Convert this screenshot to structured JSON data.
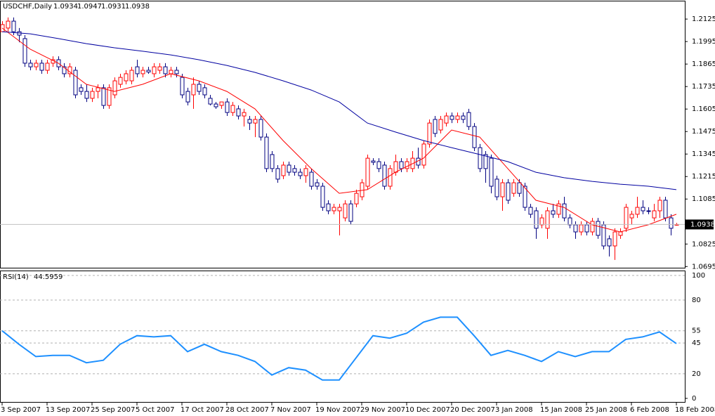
{
  "chart_data": [
    {
      "type": "candlestick",
      "title": "USDCHF,Daily",
      "categories": [
        "3 Sep 2007",
        null,
        null,
        null,
        null,
        null,
        null,
        null,
        "13 Sep 2007",
        null,
        null,
        null,
        null,
        null,
        null,
        null,
        "25 Sep 2007",
        null,
        null,
        null,
        null,
        null,
        null,
        null,
        "5 Oct 2007",
        null,
        null,
        null,
        null,
        null,
        null,
        null,
        "17 Oct 2007",
        null,
        null,
        null,
        null,
        null,
        null,
        null,
        "28 Oct 2007",
        null,
        null,
        null,
        null,
        null,
        null,
        null,
        "7 Nov 2007",
        null,
        null,
        null,
        null,
        null,
        null,
        null,
        "19 Nov 2007",
        null,
        null,
        null,
        null,
        null,
        null,
        null,
        "29 Nov 2007",
        null,
        null,
        null,
        null,
        null,
        null,
        null,
        "10 Dec 2007",
        null,
        null,
        null,
        null,
        null,
        null,
        null,
        "20 Dec 2007",
        null,
        null,
        null,
        null,
        null,
        null,
        null,
        "3 Jan 2008",
        null,
        null,
        null,
        null,
        null,
        null,
        null,
        "15 Jan 2008",
        null,
        null,
        null,
        null,
        null,
        null,
        null,
        "25 Jan 2008",
        null,
        null,
        null,
        null,
        null,
        null,
        null,
        "6 Feb 2008",
        null,
        null,
        null,
        null,
        null,
        null,
        null,
        "18 Feb 2008"
      ],
      "open": [
        1.2052,
        1.2073,
        1.2113,
        1.2052,
        1.2012,
        1.187,
        1.1849,
        1.187,
        1.1829,
        1.187,
        1.189,
        1.1849,
        1.1809,
        1.1829,
        1.1728,
        1.1707,
        1.1667,
        1.1707,
        1.1728,
        1.1626,
        1.1687,
        1.1748,
        1.1768,
        1.1768,
        1.1849,
        1.1809,
        1.1829,
        1.1809,
        1.1829,
        1.1849,
        1.1809,
        1.1829,
        1.1788,
        1.1707,
        1.1687,
        1.1748,
        1.1728,
        1.1667,
        1.1634,
        1.1626,
        1.1646,
        1.1585,
        1.1606,
        1.1565,
        1.1545,
        1.1524,
        1.1545,
        1.1443,
        1.1342,
        1.1261,
        1.122,
        1.1281,
        1.1261,
        1.124,
        1.122,
        1.124,
        1.1179,
        1.1159,
        1.1057,
        1.1017,
        1.1017,
        1.0976,
        1.1057,
        1.1057,
        1.1098,
        1.1159,
        1.1305,
        1.1301,
        1.1281,
        1.1159,
        1.124,
        1.1301,
        1.1261,
        1.1261,
        1.1321,
        1.1281,
        1.1403,
        1.1545,
        1.1484,
        1.1524,
        1.1565,
        1.1545,
        1.1565,
        1.1585,
        1.1504,
        1.1382,
        1.1342,
        1.1321,
        1.12,
        1.1098,
        1.1179,
        1.1118,
        1.1179,
        1.1159,
        1.1037,
        1.1017,
        1.0936,
        1.0916,
        1.1017,
        1.0997,
        1.1057,
        1.0976,
        1.0936,
        1.0895,
        1.0936,
        1.0895,
        1.0956,
        1.0936,
        1.0855,
        1.0814,
        1.0875,
        1.0916,
        1.0976,
        1.0997,
        1.1037,
        1.1017,
        1.0976,
        1.1017,
        1.1078,
        1.0976,
        1.0934
      ],
      "high": [
        1.2113,
        1.2134,
        1.2134,
        1.2073,
        1.2032,
        1.189,
        1.189,
        1.189,
        1.189,
        1.191,
        1.191,
        1.187,
        1.187,
        1.1849,
        1.1748,
        1.1748,
        1.1728,
        1.1748,
        1.1748,
        1.1748,
        1.1788,
        1.1809,
        1.1829,
        1.1849,
        1.189,
        1.1849,
        1.1849,
        1.187,
        1.187,
        1.187,
        1.1849,
        1.1849,
        1.1809,
        1.1728,
        1.1788,
        1.1768,
        1.1748,
        1.1687,
        1.1646,
        1.1646,
        1.1667,
        1.1646,
        1.1626,
        1.1606,
        1.1565,
        1.1565,
        1.1565,
        1.1464,
        1.1362,
        1.1281,
        1.1301,
        1.1301,
        1.1281,
        1.1261,
        1.1281,
        1.1261,
        1.12,
        1.1179,
        1.1078,
        1.1057,
        1.1057,
        1.1078,
        1.1078,
        1.1139,
        1.12,
        1.1342,
        1.1321,
        1.1321,
        1.1301,
        1.1281,
        1.1342,
        1.1321,
        1.1321,
        1.1362,
        1.1382,
        1.1423,
        1.1545,
        1.1565,
        1.1565,
        1.1585,
        1.1585,
        1.1585,
        1.1585,
        1.1606,
        1.1524,
        1.1403,
        1.1362,
        1.1342,
        1.122,
        1.12,
        1.12,
        1.12,
        1.12,
        1.1179,
        1.1057,
        1.1037,
        1.0997,
        1.1037,
        1.1057,
        1.1078,
        1.1098,
        1.0997,
        1.0956,
        1.0956,
        1.0956,
        1.0976,
        1.0976,
        1.0956,
        1.0875,
        1.0916,
        1.0916,
        1.1057,
        1.1017,
        1.1098,
        1.1078,
        1.1037,
        1.1057,
        1.1098,
        1.1098,
        1.0997,
        1.0947
      ],
      "low": [
        1.2052,
        1.2052,
        1.2032,
        1.1991,
        1.1849,
        1.1829,
        1.1829,
        1.1809,
        1.1809,
        1.1849,
        1.1829,
        1.1788,
        1.1788,
        1.1667,
        1.1687,
        1.1646,
        1.1646,
        1.1667,
        1.1606,
        1.1606,
        1.1667,
        1.1728,
        1.1748,
        1.1748,
        1.1788,
        1.1788,
        1.1809,
        1.1788,
        1.1809,
        1.1788,
        1.1788,
        1.1788,
        1.1667,
        1.1626,
        1.1606,
        1.1687,
        1.1667,
        1.1626,
        1.1606,
        1.1606,
        1.1565,
        1.1565,
        1.1545,
        1.1504,
        1.1484,
        1.1443,
        1.1423,
        1.124,
        1.124,
        1.1179,
        1.12,
        1.122,
        1.122,
        1.12,
        1.1179,
        1.1139,
        1.1139,
        1.1017,
        1.0997,
        1.0997,
        1.0875,
        1.0956,
        1.0936,
        1.1037,
        1.1078,
        1.1139,
        1.1281,
        1.124,
        1.1139,
        1.1139,
        1.122,
        1.124,
        1.124,
        1.124,
        1.1261,
        1.1261,
        1.1382,
        1.1443,
        1.1464,
        1.1504,
        1.1524,
        1.1524,
        1.1524,
        1.1484,
        1.1362,
        1.124,
        1.1179,
        1.1118,
        1.1078,
        1.1017,
        1.1057,
        1.1098,
        1.1098,
        1.1017,
        1.0976,
        1.0855,
        1.0916,
        1.0855,
        1.0976,
        1.0976,
        1.0956,
        1.0916,
        1.0855,
        1.0875,
        1.0875,
        1.0875,
        1.0855,
        1.0794,
        1.0753,
        1.0733,
        1.0855,
        1.0895,
        1.0936,
        1.0976,
        1.0997,
        1.0997,
        1.0956,
        1.0976,
        1.0956,
        1.0875,
        1.0931
      ],
      "close": [
        1.2093,
        1.2113,
        1.2052,
        1.2032,
        1.187,
        1.1849,
        1.187,
        1.1829,
        1.187,
        1.189,
        1.1849,
        1.1809,
        1.1849,
        1.1687,
        1.1707,
        1.1667,
        1.1707,
        1.1728,
        1.1626,
        1.1728,
        1.1768,
        1.1788,
        1.1809,
        1.1829,
        1.1809,
        1.1829,
        1.1819,
        1.1849,
        1.1849,
        1.1809,
        1.1829,
        1.1809,
        1.1687,
        1.1646,
        1.1748,
        1.1707,
        1.1687,
        1.1634,
        1.1618,
        1.1646,
        1.1585,
        1.1626,
        1.1565,
        1.1585,
        1.1524,
        1.1545,
        1.1443,
        1.1261,
        1.1261,
        1.12,
        1.1281,
        1.124,
        1.124,
        1.122,
        1.1261,
        1.1159,
        1.1159,
        1.1037,
        1.1017,
        1.1037,
        1.1037,
        1.1057,
        1.0956,
        1.1118,
        1.1179,
        1.1321,
        1.1297,
        1.1261,
        1.1159,
        1.1261,
        1.1301,
        1.1261,
        1.1301,
        1.1321,
        1.1281,
        1.1403,
        1.1524,
        1.1464,
        1.1545,
        1.1565,
        1.1545,
        1.1565,
        1.1545,
        1.1504,
        1.1382,
        1.1261,
        1.1261,
        1.1159,
        1.1098,
        1.1179,
        1.1078,
        1.1179,
        1.1118,
        1.1037,
        1.0997,
        1.0916,
        1.0976,
        1.1017,
        1.0997,
        1.1057,
        1.0976,
        1.0936,
        1.0895,
        1.0936,
        1.0895,
        1.0956,
        1.0875,
        1.0814,
        1.0814,
        1.0895,
        1.0895,
        1.1037,
        1.0997,
        1.1037,
        1.1017,
        1.1013,
        1.1017,
        1.1078,
        1.0976,
        1.0916,
        1.0938
      ],
      "up_color": "#ff0000",
      "down_color": "#000080",
      "overlays": [
        {
          "color": "#ff0000",
          "x": [
            0,
            5,
            10,
            15,
            20,
            25,
            30,
            35,
            40,
            45,
            50,
            55,
            60,
            65,
            70,
            75,
            80,
            85,
            90,
            95,
            100,
            105,
            110,
            115,
            120
          ],
          "values": [
            1.2073,
            1.1951,
            1.187,
            1.1748,
            1.1707,
            1.1748,
            1.1809,
            1.1768,
            1.1707,
            1.1606,
            1.1423,
            1.1261,
            1.1118,
            1.1139,
            1.124,
            1.1321,
            1.1484,
            1.1443,
            1.1261,
            1.1078,
            1.1037,
            1.0936,
            1.0895,
            1.0936,
            1.0997
          ]
        },
        {
          "color": "#0000a0",
          "x": [
            0,
            5,
            10,
            15,
            20,
            25,
            30,
            35,
            40,
            45,
            50,
            55,
            60,
            65,
            70,
            75,
            80,
            85,
            90,
            95,
            100,
            105,
            110,
            115,
            120
          ],
          "values": [
            1.2052,
            1.204,
            1.2012,
            1.1983,
            1.1959,
            1.1939,
            1.1918,
            1.189,
            1.1857,
            1.1817,
            1.1768,
            1.1715,
            1.1646,
            1.1524,
            1.1472,
            1.1423,
            1.1382,
            1.1342,
            1.1301,
            1.124,
            1.1208,
            1.1187,
            1.1171,
            1.1159,
            1.1139
          ]
        }
      ],
      "ylim": [
        1.0688,
        1.2227
      ],
      "yticks": [
        1.0695,
        1.0825,
        1.1085,
        1.1215,
        1.1345,
        1.1475,
        1.1605,
        1.1735,
        1.1865,
        1.1995,
        1.2125
      ],
      "last_price_line": true
    },
    {
      "type": "line",
      "title": "RSI(14)",
      "color": "#1e90ff",
      "x": [
        0,
        3,
        6,
        9,
        12,
        15,
        18,
        21,
        24,
        27,
        30,
        33,
        36,
        39,
        42,
        45,
        48,
        51,
        54,
        57,
        60,
        63,
        66,
        69,
        72,
        75,
        78,
        81,
        84,
        87,
        90,
        93,
        96,
        99,
        102,
        105,
        108,
        111,
        114,
        117,
        120
      ],
      "values": [
        55,
        44,
        34,
        35,
        35,
        29,
        31,
        44,
        51,
        50,
        51,
        38,
        44,
        38,
        35,
        30,
        19,
        25,
        23,
        15,
        15,
        33,
        51,
        49,
        53,
        62,
        66,
        66,
        51,
        35,
        39,
        35,
        30,
        38,
        34,
        38,
        38,
        48,
        50,
        54,
        44.5959
      ],
      "ylim": [
        -2.9,
        103.4
      ],
      "yticks": [
        0,
        20,
        45,
        55,
        80,
        100
      ],
      "grid": true
    }
  ]
}
